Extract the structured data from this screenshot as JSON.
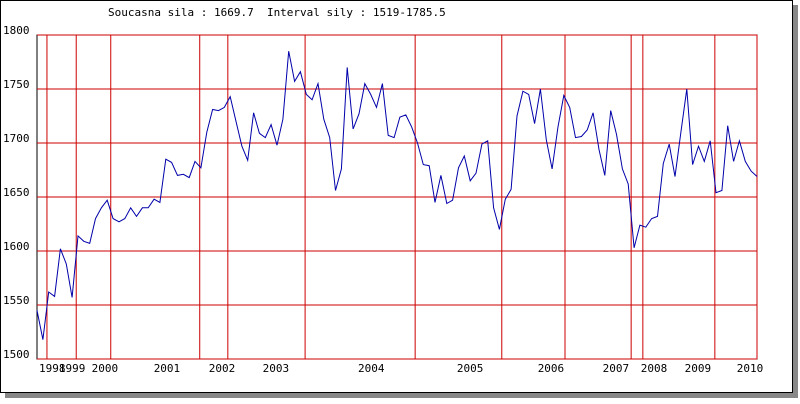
{
  "chart_data": {
    "type": "line",
    "title": "Soucasna sila : 1669.7  Interval sily : 1519-1785.5",
    "color": "#0000aa",
    "grid_color": "#cc0000",
    "grid": true,
    "values": [
      1545,
      1518,
      1562,
      1558,
      1602,
      1588,
      1557,
      1614,
      1609,
      1607,
      1630,
      1640,
      1647,
      1630,
      1627,
      1630,
      1640,
      1632,
      1640,
      1640,
      1648,
      1645,
      1685,
      1682,
      1670,
      1671,
      1668,
      1683,
      1677,
      1710,
      1731,
      1730,
      1733,
      1743,
      1720,
      1697,
      1684,
      1728,
      1709,
      1705,
      1717,
      1698,
      1722,
      1785,
      1757,
      1766,
      1745,
      1740,
      1755,
      1722,
      1705,
      1656,
      1676,
      1770,
      1713,
      1727,
      1755,
      1745,
      1733,
      1755,
      1707,
      1705,
      1724,
      1726,
      1715,
      1700,
      1680,
      1679,
      1645,
      1670,
      1644,
      1647,
      1677,
      1688,
      1665,
      1672,
      1699,
      1702,
      1640,
      1620,
      1648,
      1657,
      1725,
      1748,
      1745,
      1718,
      1750,
      1703,
      1676,
      1715,
      1744,
      1733,
      1705,
      1706,
      1712,
      1728,
      1694,
      1670,
      1730,
      1708,
      1676,
      1662,
      1603,
      1624,
      1622,
      1630,
      1632,
      1681,
      1699,
      1669,
      1710,
      1750,
      1680,
      1697,
      1683,
      1702,
      1654,
      1656,
      1716,
      1683,
      1702,
      1683,
      1674,
      1669
    ],
    "xlim": [
      0,
      123
    ],
    "xticks": [
      {
        "value": 2.6,
        "label": "1998"
      },
      {
        "value": 6.0,
        "label": "1999"
      },
      {
        "value": 11.6,
        "label": "2000"
      },
      {
        "value": 22.2,
        "label": "2001"
      },
      {
        "value": 31.6,
        "label": "2002"
      },
      {
        "value": 40.8,
        "label": "2003"
      },
      {
        "value": 57.1,
        "label": "2004"
      },
      {
        "value": 74.0,
        "label": "2005"
      },
      {
        "value": 87.8,
        "label": "2006"
      },
      {
        "value": 98.9,
        "label": "2007"
      },
      {
        "value": 105.4,
        "label": "2008"
      },
      {
        "value": 112.9,
        "label": "2009"
      },
      {
        "value": 121.8,
        "label": "2010"
      }
    ],
    "xgrid": [
      1.7,
      6.7,
      12.6,
      27.8,
      32.6,
      45.8,
      64.6,
      79.4,
      90.2,
      101.5,
      103.5,
      115.8,
      123
    ],
    "ylim": [
      1500,
      1800
    ],
    "yticks": [
      1500,
      1550,
      1600,
      1650,
      1700,
      1750,
      1800
    ]
  }
}
